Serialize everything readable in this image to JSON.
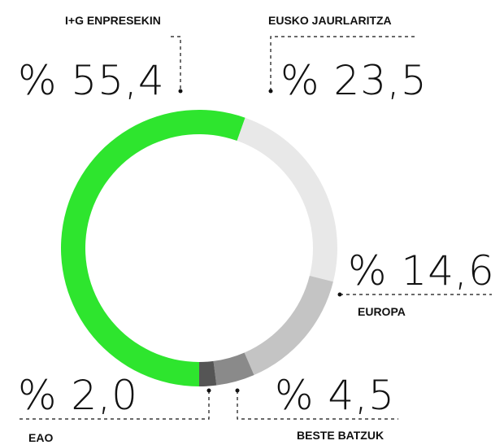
{
  "chart_data": {
    "type": "pie",
    "donut": true,
    "categories": [
      "I+G ENPRESEKIN",
      "EUSKO JAURLARITZA",
      "EUROPA",
      "BESTE BATZUK",
      "EAO"
    ],
    "values": [
      55.4,
      23.5,
      14.6,
      4.5,
      2.0
    ],
    "value_labels": [
      "% 55,4",
      "% 23,5",
      "% 14,6",
      "% 4,5",
      "% 2,0"
    ],
    "colors": [
      "#2ee52e",
      "#e8e8e8",
      "#c4c4c4",
      "#8a8a8a",
      "#555555"
    ]
  }
}
